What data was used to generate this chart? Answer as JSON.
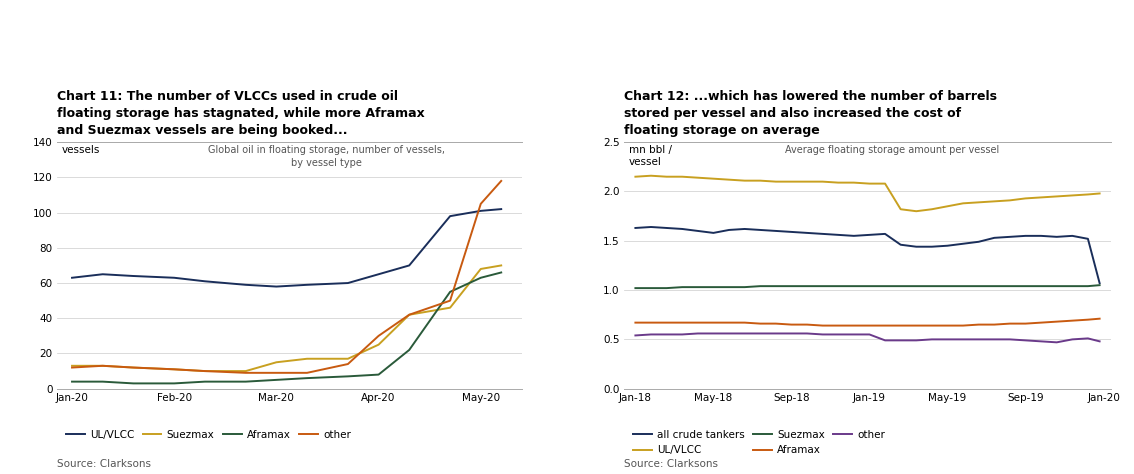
{
  "chart1": {
    "title": "Chart 11: The number of VLCCs used in crude oil\nfloating storage has stagnated, while more Aframax\nand Suezmax vessels are being booked...",
    "subtitle": "Global oil in floating storage, number of vessels,\nby vessel type",
    "ylabel": "vessels",
    "source": "Source: Clarksons",
    "xlabels": [
      "Jan-20",
      "Feb-20",
      "Mar-20",
      "Apr-20",
      "May-20"
    ],
    "ylim": [
      0,
      140
    ],
    "yticks": [
      0,
      20,
      40,
      60,
      80,
      100,
      120,
      140
    ],
    "series": {
      "UL/VLCC": {
        "color": "#1a2e5a",
        "x": [
          0,
          0.3,
          0.6,
          1.0,
          1.3,
          1.7,
          2.0,
          2.3,
          2.7,
          3.0,
          3.3,
          3.7,
          4.0,
          4.2
        ],
        "y": [
          63,
          65,
          64,
          63,
          61,
          59,
          58,
          59,
          60,
          65,
          70,
          98,
          101,
          102
        ]
      },
      "Suezmax": {
        "color": "#c8a020",
        "x": [
          0,
          0.3,
          0.6,
          1.0,
          1.3,
          1.7,
          2.0,
          2.3,
          2.7,
          3.0,
          3.3,
          3.7,
          4.0,
          4.2
        ],
        "y": [
          13,
          13,
          12,
          11,
          10,
          10,
          15,
          17,
          17,
          25,
          42,
          46,
          68,
          70
        ]
      },
      "Aframax": {
        "color": "#2a5a3a",
        "x": [
          0,
          0.3,
          0.6,
          1.0,
          1.3,
          1.7,
          2.0,
          2.3,
          2.7,
          3.0,
          3.3,
          3.7,
          4.0,
          4.2
        ],
        "y": [
          4,
          4,
          3,
          3,
          4,
          4,
          5,
          6,
          7,
          8,
          22,
          55,
          63,
          66
        ]
      },
      "other": {
        "color": "#c85a10",
        "x": [
          0,
          0.3,
          0.6,
          1.0,
          1.3,
          1.7,
          2.0,
          2.3,
          2.7,
          3.0,
          3.3,
          3.7,
          4.0,
          4.2
        ],
        "y": [
          12,
          13,
          12,
          11,
          10,
          9,
          9,
          9,
          14,
          30,
          42,
          50,
          105,
          118
        ]
      }
    }
  },
  "chart2": {
    "title": "Chart 12: ...which has lowered the number of barrels\nstored per vessel and also increased the cost of\nfloating storage on average",
    "subtitle": "Average floating storage amount per vessel",
    "ylabel": "mn bbl /\nvessel",
    "source": "Source: Clarksons",
    "xlabels": [
      "Jan-18",
      "May-18",
      "Sep-18",
      "Jan-19",
      "May-19",
      "Sep-19",
      "Jan-20"
    ],
    "ylim": [
      0.0,
      2.5
    ],
    "yticks": [
      0.0,
      0.5,
      1.0,
      1.5,
      2.0,
      2.5
    ],
    "series": {
      "all crude tankers": {
        "color": "#1a2e5a",
        "x": [
          0,
          0.2,
          0.4,
          0.6,
          0.8,
          1.0,
          1.2,
          1.4,
          1.6,
          1.8,
          2.0,
          2.2,
          2.4,
          2.6,
          2.8,
          3.0,
          3.2,
          3.4,
          3.6,
          3.8,
          4.0,
          4.2,
          4.4,
          4.6,
          4.8,
          5.0,
          5.2,
          5.4,
          5.6,
          5.8,
          5.95
        ],
        "y": [
          1.63,
          1.64,
          1.63,
          1.62,
          1.6,
          1.58,
          1.61,
          1.62,
          1.61,
          1.6,
          1.59,
          1.58,
          1.57,
          1.56,
          1.55,
          1.56,
          1.57,
          1.46,
          1.44,
          1.44,
          1.45,
          1.47,
          1.49,
          1.53,
          1.54,
          1.55,
          1.55,
          1.54,
          1.55,
          1.52,
          1.07
        ]
      },
      "UL/VLCC": {
        "color": "#c8a020",
        "x": [
          0,
          0.2,
          0.4,
          0.6,
          0.8,
          1.0,
          1.2,
          1.4,
          1.6,
          1.8,
          2.0,
          2.2,
          2.4,
          2.6,
          2.8,
          3.0,
          3.2,
          3.4,
          3.6,
          3.8,
          4.0,
          4.2,
          4.4,
          4.6,
          4.8,
          5.0,
          5.2,
          5.4,
          5.6,
          5.8,
          5.95
        ],
        "y": [
          2.15,
          2.16,
          2.15,
          2.15,
          2.14,
          2.13,
          2.12,
          2.11,
          2.11,
          2.1,
          2.1,
          2.1,
          2.1,
          2.09,
          2.09,
          2.08,
          2.08,
          1.82,
          1.8,
          1.82,
          1.85,
          1.88,
          1.89,
          1.9,
          1.91,
          1.93,
          1.94,
          1.95,
          1.96,
          1.97,
          1.98
        ]
      },
      "Suezmax": {
        "color": "#2a5a3a",
        "x": [
          0,
          0.2,
          0.4,
          0.6,
          0.8,
          1.0,
          1.2,
          1.4,
          1.6,
          1.8,
          2.0,
          2.2,
          2.4,
          2.6,
          2.8,
          3.0,
          3.2,
          3.4,
          3.6,
          3.8,
          4.0,
          4.2,
          4.4,
          4.6,
          4.8,
          5.0,
          5.2,
          5.4,
          5.6,
          5.8,
          5.95
        ],
        "y": [
          1.02,
          1.02,
          1.02,
          1.03,
          1.03,
          1.03,
          1.03,
          1.03,
          1.04,
          1.04,
          1.04,
          1.04,
          1.04,
          1.04,
          1.04,
          1.04,
          1.04,
          1.04,
          1.04,
          1.04,
          1.04,
          1.04,
          1.04,
          1.04,
          1.04,
          1.04,
          1.04,
          1.04,
          1.04,
          1.04,
          1.05
        ]
      },
      "Aframax": {
        "color": "#c85a10",
        "x": [
          0,
          0.2,
          0.4,
          0.6,
          0.8,
          1.0,
          1.2,
          1.4,
          1.6,
          1.8,
          2.0,
          2.2,
          2.4,
          2.6,
          2.8,
          3.0,
          3.2,
          3.4,
          3.6,
          3.8,
          4.0,
          4.2,
          4.4,
          4.6,
          4.8,
          5.0,
          5.2,
          5.4,
          5.6,
          5.8,
          5.95
        ],
        "y": [
          0.67,
          0.67,
          0.67,
          0.67,
          0.67,
          0.67,
          0.67,
          0.67,
          0.66,
          0.66,
          0.65,
          0.65,
          0.64,
          0.64,
          0.64,
          0.64,
          0.64,
          0.64,
          0.64,
          0.64,
          0.64,
          0.64,
          0.65,
          0.65,
          0.66,
          0.66,
          0.67,
          0.68,
          0.69,
          0.7,
          0.71
        ]
      },
      "other": {
        "color": "#6a3a8a",
        "x": [
          0,
          0.2,
          0.4,
          0.6,
          0.8,
          1.0,
          1.2,
          1.4,
          1.6,
          1.8,
          2.0,
          2.2,
          2.4,
          2.6,
          2.8,
          3.0,
          3.2,
          3.4,
          3.6,
          3.8,
          4.0,
          4.2,
          4.4,
          4.6,
          4.8,
          5.0,
          5.2,
          5.4,
          5.6,
          5.8,
          5.95
        ],
        "y": [
          0.54,
          0.55,
          0.55,
          0.55,
          0.56,
          0.56,
          0.56,
          0.56,
          0.56,
          0.56,
          0.56,
          0.56,
          0.55,
          0.55,
          0.55,
          0.55,
          0.49,
          0.49,
          0.49,
          0.5,
          0.5,
          0.5,
          0.5,
          0.5,
          0.5,
          0.49,
          0.48,
          0.47,
          0.5,
          0.51,
          0.48
        ]
      }
    }
  }
}
